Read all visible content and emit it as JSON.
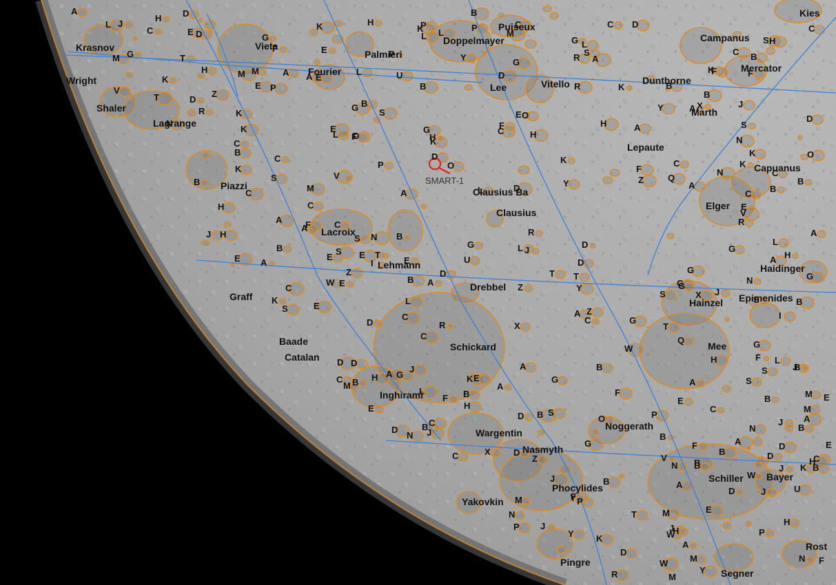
{
  "map": {
    "colors": {
      "space": "#000000",
      "surface": "#a9a9a9",
      "crater_outline": "#d98c2b",
      "grid": "#3f7fd6",
      "label": "#111111",
      "probe_marker": "#e02020"
    },
    "probe_marker": {
      "label": "SMART-1",
      "icon": "magnifier-target-icon"
    },
    "crater_names": [
      "Kies",
      "Puiseux",
      "Doppelmayer",
      "Campanus",
      "Mercator",
      "Vieta",
      "Krasnov",
      "Fourier",
      "Palmieri",
      "Lee",
      "Vitello",
      "Dunthorne",
      "Marth",
      "Wright",
      "Shaler",
      "Lagrange",
      "Lepaute",
      "Capuanus",
      "Elger",
      "Piazzi",
      "Clausius Ba",
      "Clausius",
      "Lacroix",
      "Lehmann",
      "Drebbel",
      "Haidinger",
      "Graff",
      "Hainzel",
      "Epimenides",
      "Mee",
      "Schickard",
      "Baade",
      "Catalan",
      "Inghirami",
      "Wargentin",
      "Nasmyth",
      "Noggerath",
      "Schiller",
      "Bayer",
      "Phocylides",
      "Yakovkin",
      "Pingre",
      "Rost",
      "Segner"
    ],
    "letter_labels": [
      "Y",
      "E",
      "B",
      "K",
      "D",
      "B",
      "A",
      "G",
      "A",
      "F",
      "G",
      "E",
      "A",
      "C",
      "G",
      "E",
      "S",
      "H",
      "E",
      "B",
      "C",
      "H",
      "L",
      "C",
      "F",
      "G",
      "E",
      "M",
      "P",
      "A",
      "T",
      "B",
      "M",
      "K",
      "Y",
      "B",
      "C",
      "A",
      "C",
      "E",
      "M",
      "B",
      "A",
      "E",
      "R",
      "K",
      "P",
      "L",
      "B",
      "V",
      "B",
      "O",
      "S",
      "H",
      "P",
      "D",
      "B",
      "E",
      "D",
      "L",
      "K",
      "N",
      "C",
      "G",
      "R",
      "L",
      "A",
      "D",
      "D",
      "S",
      "C",
      "B",
      "H",
      "F",
      "T",
      "W",
      "J",
      "S",
      "D",
      "G",
      "A",
      "X",
      "N",
      "L",
      "M",
      "Z",
      "O",
      "G",
      "J",
      "B",
      "H",
      "Y",
      "R",
      "K",
      "T",
      "I",
      "A",
      "C",
      "D",
      "L",
      "K",
      "A",
      "C",
      "H",
      "K",
      "S",
      "D",
      "N",
      "A",
      "K",
      "A",
      "P",
      "B",
      "J",
      "D",
      "B",
      "C",
      "B",
      "P",
      "A",
      "E",
      "L",
      "G",
      "M",
      "E",
      "N",
      "D",
      "B",
      "F",
      "X",
      "Z",
      "F",
      "H",
      "J",
      "K",
      "A",
      "B",
      "G",
      "M",
      "D",
      "L",
      "C",
      "B",
      "E",
      "N",
      "C",
      "E",
      "J",
      "O",
      "R",
      "M",
      "K",
      "A",
      "B",
      "B",
      "H",
      "F",
      "E",
      "D",
      "K",
      "L",
      "P",
      "J",
      "X",
      "W",
      "T",
      "F",
      "M",
      "V",
      "S",
      "H",
      "J",
      "N",
      "T",
      "P",
      "B",
      "J",
      "U",
      "H",
      "F",
      "D",
      "C",
      "S",
      "G",
      "R",
      "G",
      "Q",
      "M",
      "W",
      "H",
      "A",
      "E",
      "G",
      "A",
      "L",
      "M",
      "B",
      "C",
      "D",
      "C",
      "Z",
      "S",
      "J",
      "I",
      "L",
      "Y",
      "F",
      "C",
      "K",
      "F",
      "T",
      "H",
      "G",
      "M",
      "D",
      "F",
      "B",
      "H",
      "J",
      "N",
      "A",
      "D",
      "L",
      "K",
      "A",
      "A",
      "B",
      "Y",
      "D",
      "W",
      "Z",
      "U",
      "N",
      "Q",
      "C",
      "E",
      "Y",
      "H",
      "R",
      "G",
      "F",
      "E",
      "K",
      "N",
      "S",
      "W",
      "P",
      "V",
      "O",
      "B",
      "C",
      "D",
      "K",
      "J",
      "B",
      "A",
      "E",
      "Z",
      "C",
      "D",
      "B",
      "C",
      "D",
      "S",
      "G",
      "P",
      "J",
      "C",
      "A",
      "H",
      "X",
      "E",
      "F",
      "T",
      "E",
      "Z",
      "D",
      "A",
      "S",
      "K",
      "J",
      "U",
      "G",
      "S",
      "J",
      "M",
      "B",
      "Y",
      "V",
      "B",
      "R",
      "N",
      "S",
      "C",
      "D",
      "H",
      "C",
      "C"
    ]
  }
}
